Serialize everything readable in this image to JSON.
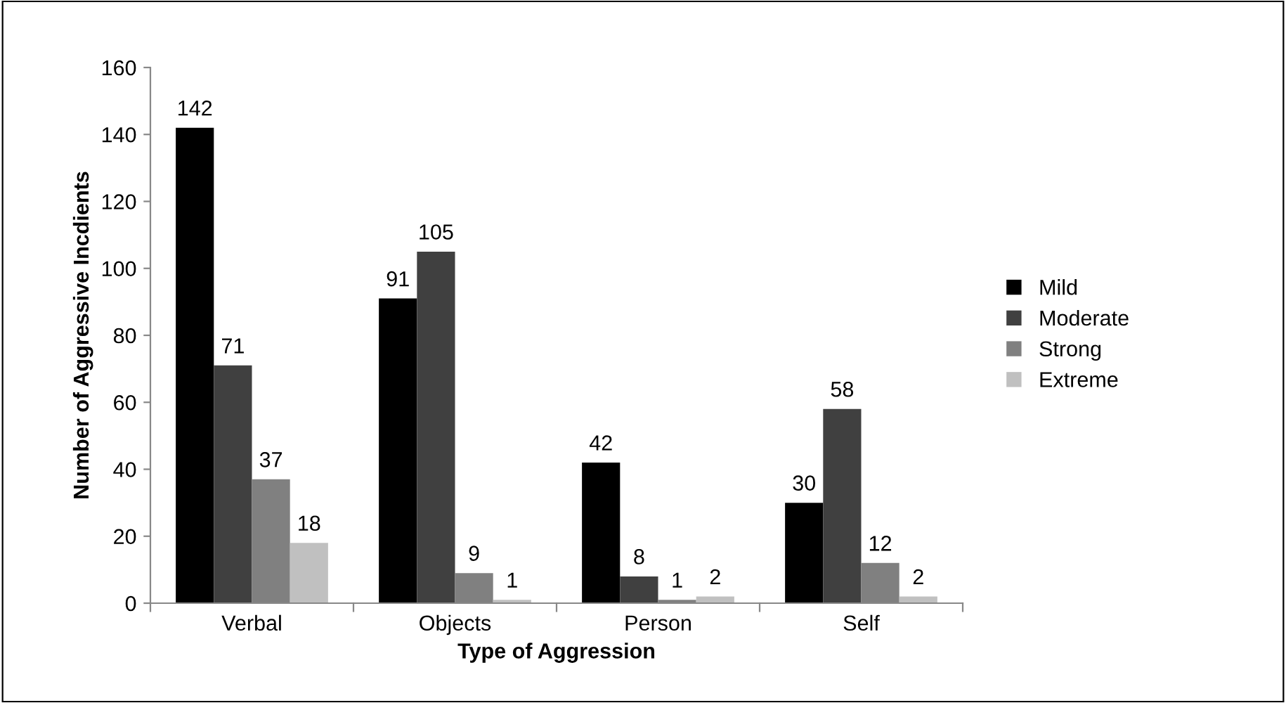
{
  "chart_data": {
    "type": "bar",
    "xlabel": "Type of Aggression",
    "ylabel": "Number of Aggressive Incdients",
    "categories": [
      "Verbal",
      "Objects",
      "Person",
      "Self"
    ],
    "series": [
      {
        "name": "Mild",
        "color": "#000000",
        "values": [
          142,
          91,
          42,
          30
        ]
      },
      {
        "name": "Moderate",
        "color": "#404040",
        "values": [
          71,
          105,
          8,
          58
        ]
      },
      {
        "name": "Strong",
        "color": "#808080",
        "values": [
          37,
          9,
          1,
          12
        ]
      },
      {
        "name": "Extreme",
        "color": "#c0c0c0",
        "values": [
          18,
          1,
          2,
          2
        ]
      }
    ],
    "ylim": [
      0,
      160
    ],
    "yticks": [
      0,
      20,
      40,
      60,
      80,
      100,
      120,
      140,
      160
    ],
    "grid": false,
    "legend": "right",
    "data_labels": true
  }
}
